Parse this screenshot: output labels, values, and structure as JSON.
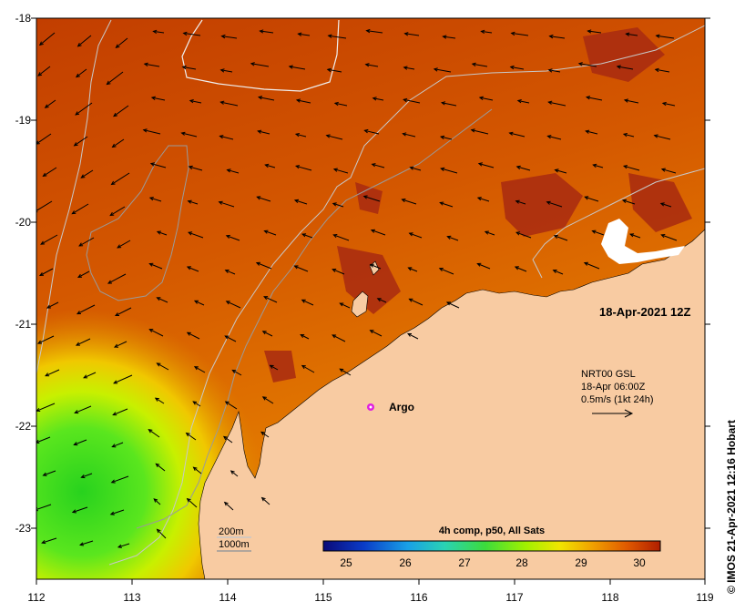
{
  "map": {
    "lon_ticks": [
      "112",
      "113",
      "114",
      "115",
      "116",
      "117",
      "118",
      "119"
    ],
    "lat_ticks": [
      "-18",
      "-19",
      "-20",
      "-21",
      "-22",
      "-23"
    ],
    "lon_range": [
      112,
      119
    ],
    "lat_range": [
      -23.5,
      -18
    ]
  },
  "datestamp": "18-Apr-2021 12Z",
  "argo_label": "Argo",
  "colorbar": {
    "title": "4h comp, p50, All Sats",
    "ticks": [
      "25",
      "26",
      "27",
      "28",
      "29",
      "30"
    ],
    "range": [
      24.5,
      30.4
    ],
    "colors": [
      "#0a0a78",
      "#0a3cc8",
      "#19a0e6",
      "#2ad2b4",
      "#3cdc3c",
      "#a0f000",
      "#f0e600",
      "#f0a000",
      "#e05a00",
      "#b01e00"
    ]
  },
  "legend": {
    "contour_200": "200m",
    "contour_1000": "1000m",
    "colors": {
      "c200": "#c8c8c8",
      "c1000": "#888888"
    }
  },
  "current_info": {
    "line1": "NRT00 GSL",
    "line2": "18-Apr 06:00Z",
    "line3": "0.5m/s (1kt 24h)"
  },
  "credit": "© IMOS 21-Apr-2021 12:16 Hobart",
  "colors": {
    "land": "#f8cba2",
    "sea_warm": "#c24a00",
    "sea_mid": "#e07a00",
    "sea_cool": "#3cdc3c",
    "argo": "#e020e0"
  }
}
